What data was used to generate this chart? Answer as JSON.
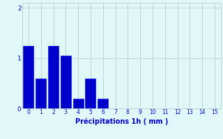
{
  "bar_values": [
    1.25,
    0.6,
    1.25,
    1.05,
    0.2,
    0.6,
    0.2,
    0,
    0,
    0,
    0,
    0,
    0,
    0,
    0,
    0
  ],
  "bar_color": "#0000cc",
  "bar_edge_color": "#1111ee",
  "background_color": "#e0f8f8",
  "grid_color": "#b8cece",
  "xlabel": "Précipitations 1h ( mm )",
  "xlabel_color": "#0000cc",
  "tick_color": "#0000cc",
  "ylim": [
    0,
    2.1
  ],
  "yticks": [
    0,
    1,
    2
  ],
  "xlim": [
    -0.5,
    15.5
  ],
  "xticks": [
    0,
    1,
    2,
    3,
    4,
    5,
    6,
    7,
    8,
    9,
    10,
    11,
    12,
    13,
    14,
    15
  ],
  "bar_width": 0.85
}
